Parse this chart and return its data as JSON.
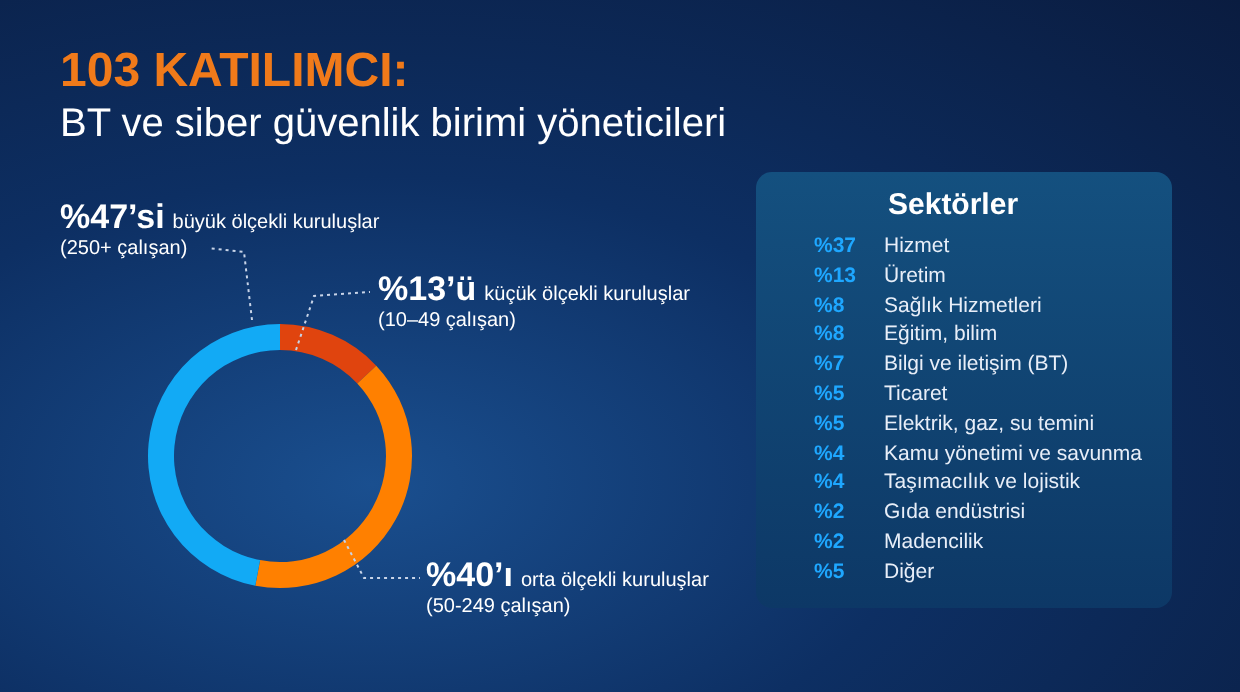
{
  "chart_data": [
    {
      "type": "donut",
      "title": "103 KATILIMCI:",
      "subtitle": "BT ve siber güvenlik birimi yöneticileri",
      "categories": [
        "küçük ölçekli kuruluşlar\n(10–49 çalışan)",
        "orta ölçekli kuruluşlar\n(50-249 çalışan)",
        "büyük ölçekli kuruluşlar\n(250+ çalışan)"
      ],
      "values": [
        13,
        40,
        47
      ],
      "colors": [
        "#e0440e",
        "#ff8000",
        "#12aaf5"
      ],
      "value_labels": [
        "%13’ü",
        "%40’ı",
        "%47’si"
      ]
    },
    {
      "type": "other",
      "title": "Sektörler",
      "categories": [
        "Hizmet",
        "Üretim",
        "Sağlık Hizmetleri",
        "Eğitim, bilim",
        "Bilgi ve iletişim (BT)",
        "Ticaret",
        "Elektrik, gaz, su temini",
        "Kamu yönetimi ve savunma",
        "Taşımacılık ve lojistik",
        "Gıda endüstrisi",
        "Madencilik",
        "Diğer"
      ],
      "value_labels": [
        "%37",
        "%13",
        "%8",
        "%8",
        "%7",
        "%5",
        "%5",
        "%4",
        "%4",
        "%2",
        "%2",
        "%5"
      ],
      "color": "#1ea7ff"
    }
  ]
}
